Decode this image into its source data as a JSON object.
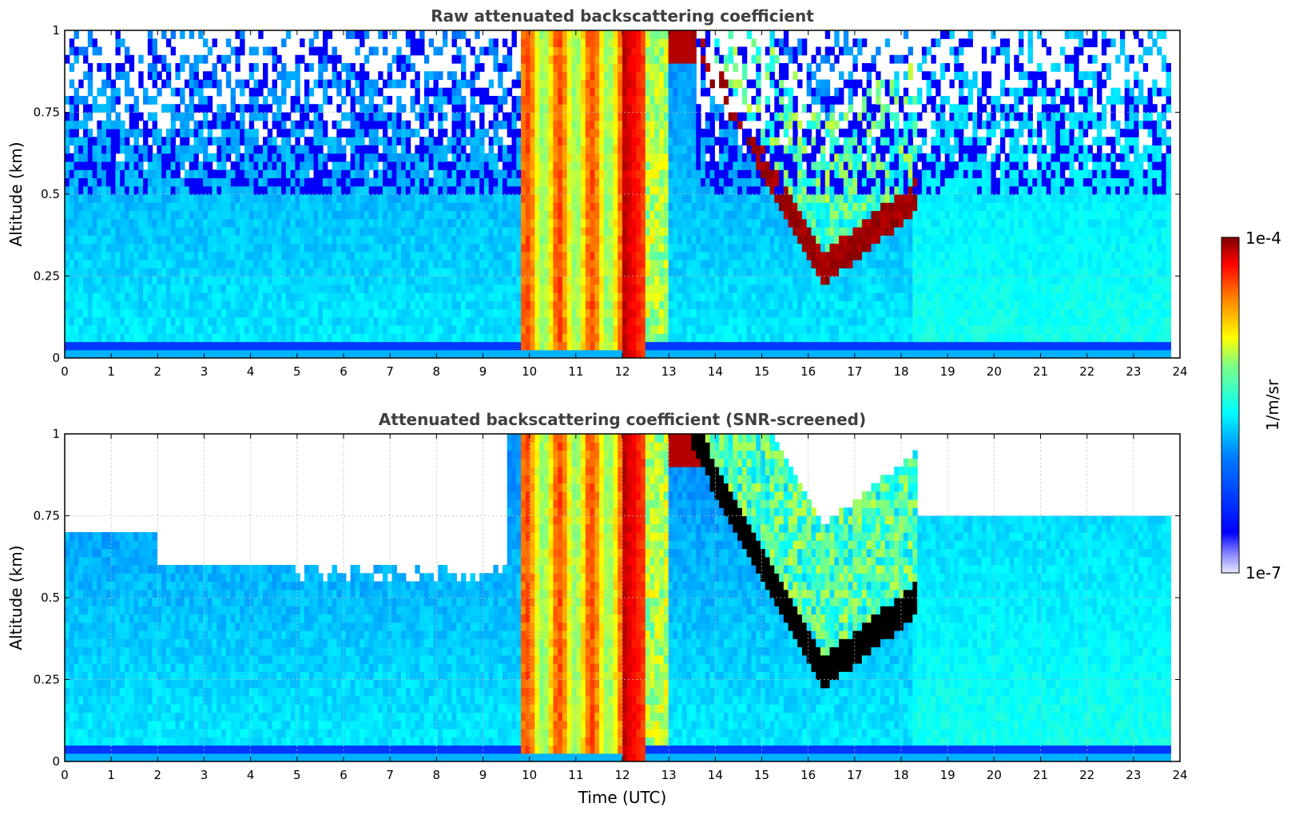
{
  "chart_data": [
    {
      "type": "heatmap",
      "title": "Raw attenuated backscattering coefficient",
      "xlabel": "",
      "ylabel": "Altitude (km)",
      "xlim": [
        0,
        24
      ],
      "ylim": [
        0,
        1
      ],
      "xticks": [
        "0",
        "1",
        "2",
        "3",
        "4",
        "5",
        "6",
        "7",
        "8",
        "9",
        "10",
        "11",
        "12",
        "13",
        "14",
        "15",
        "16",
        "17",
        "18",
        "19",
        "20",
        "21",
        "22",
        "23",
        "24"
      ],
      "yticks": [
        "0",
        "0.25",
        "0.5",
        "0.75",
        "1"
      ],
      "grid": true,
      "snr_screened": false
    },
    {
      "type": "heatmap",
      "title": "Attenuated backscattering coefficient (SNR-screened)",
      "xlabel": "Time (UTC)",
      "ylabel": "Altitude (km)",
      "xlim": [
        0,
        24
      ],
      "ylim": [
        0,
        1
      ],
      "xticks": [
        "0",
        "1",
        "2",
        "3",
        "4",
        "5",
        "6",
        "7",
        "8",
        "9",
        "10",
        "11",
        "12",
        "13",
        "14",
        "15",
        "16",
        "17",
        "18",
        "19",
        "20",
        "21",
        "22",
        "23",
        "24"
      ],
      "yticks": [
        "0",
        "0.25",
        "0.5",
        "0.75",
        "1"
      ],
      "grid": true,
      "snr_screened": true
    }
  ],
  "colorbar": {
    "label": "1/m/sr",
    "max_label": "1e-4",
    "min_label": "1e-7",
    "range": [
      1e-07,
      0.0001
    ],
    "scale": "log",
    "colormap": "jet"
  }
}
